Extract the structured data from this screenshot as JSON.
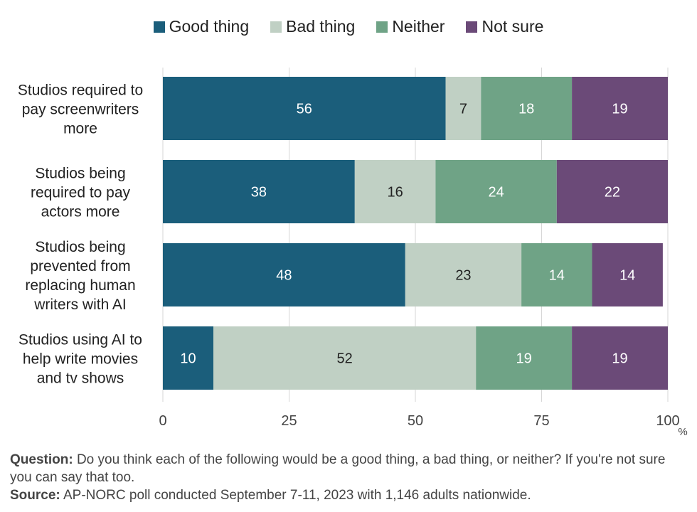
{
  "chart_data": {
    "type": "bar",
    "orientation": "horizontal",
    "stacked": true,
    "categories": [
      [
        "Studios required to",
        "pay screenwriters",
        "more"
      ],
      [
        "Studios being",
        "required to pay",
        "actors more"
      ],
      [
        "Studios being",
        "prevented from",
        "replacing human",
        "writers with AI"
      ],
      [
        "Studios using AI to",
        "help write movies",
        "and tv shows"
      ]
    ],
    "series": [
      {
        "name": "Good thing",
        "color": "#1b5e7b",
        "label_color": "#ffffff",
        "values": [
          56,
          38,
          48,
          10
        ]
      },
      {
        "name": "Bad thing",
        "color": "#c0d0c4",
        "label_color": "#222222",
        "values": [
          7,
          16,
          23,
          52
        ]
      },
      {
        "name": "Neither",
        "color": "#6fa386",
        "label_color": "#ffffff",
        "values": [
          18,
          24,
          14,
          19
        ]
      },
      {
        "name": "Not sure",
        "color": "#6b4a78",
        "label_color": "#ffffff",
        "values": [
          19,
          22,
          14,
          19
        ]
      }
    ],
    "xlim": [
      0,
      100
    ],
    "xticks": [
      0,
      25,
      50,
      75,
      100
    ],
    "xunit": "%",
    "grid": true,
    "legend_position": "top"
  },
  "notes": {
    "question_label": "Question:",
    "question_text": " Do you think each of the following would be a good thing, a bad thing, or neither? If you're not sure you can say that too.",
    "source_label": "Source:",
    "source_text": " AP-NORC poll conducted September 7-11, 2023 with 1,146 adults nationwide."
  }
}
